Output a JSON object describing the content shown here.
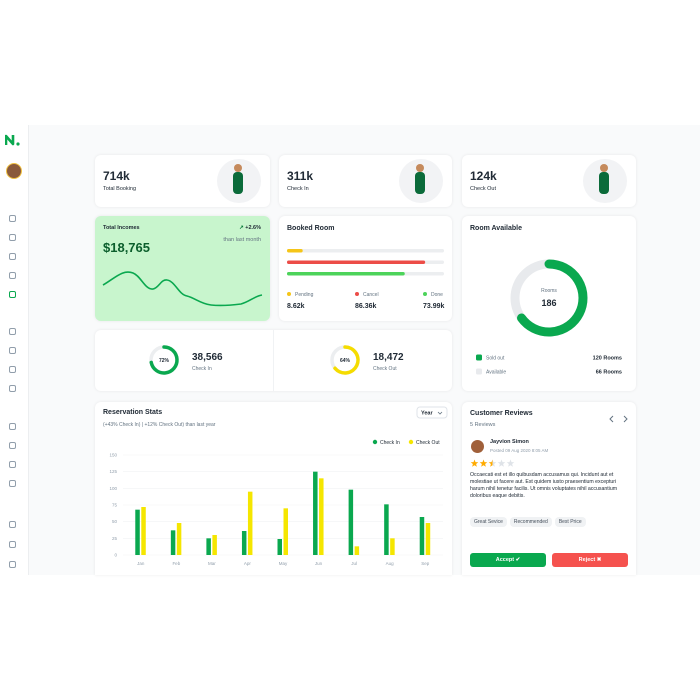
{
  "stats": [
    {
      "value": "714k",
      "label": "Total Booking"
    },
    {
      "value": "311k",
      "label": "Check In"
    },
    {
      "value": "124k",
      "label": "Check Out"
    }
  ],
  "income": {
    "title": "Total Incomes",
    "change": "+2.6%",
    "period": "than last month",
    "amount": "$18,765"
  },
  "booked_room": {
    "title": "Booked Room",
    "items": [
      {
        "label": "Pending",
        "value": "8.62k",
        "progress": 10,
        "color": "#f5c518"
      },
      {
        "label": "Cancel",
        "value": "86.36k",
        "progress": 88,
        "color": "#ec4c47"
      },
      {
        "label": "Done",
        "value": "73.99k",
        "progress": 75,
        "color": "#4cd35a"
      }
    ]
  },
  "room_available": {
    "title": "Room Available",
    "center_label": "Rooms",
    "center_value": "186",
    "sold_percent": 65,
    "legend": [
      {
        "label": "Sold out",
        "value": "120 Rooms",
        "color": "#0aa84f"
      },
      {
        "label": "Available",
        "value": "66 Rooms",
        "color": "#e8eaed"
      }
    ]
  },
  "checks": [
    {
      "percent": 72,
      "percent_label": "72%",
      "value": "38,566",
      "label": "Check In",
      "color": "#0aa84f"
    },
    {
      "percent": 64,
      "percent_label": "64%",
      "value": "18,472",
      "label": "Check Out",
      "color": "#f5dc00"
    }
  ],
  "chart_data": {
    "type": "bar",
    "title": "Reservation Stats",
    "subtitle": "(+43% Check In) | +12% Check Out) than last year",
    "period_select": "Year",
    "categories": [
      "Jan",
      "Feb",
      "Mar",
      "Apr",
      "May",
      "Jun",
      "Jul",
      "Aug",
      "Sep"
    ],
    "series": [
      {
        "name": "Check In",
        "color": "#0aa84f",
        "values": [
          68,
          37,
          25,
          36,
          24,
          125,
          98,
          76,
          57
        ]
      },
      {
        "name": "Check Out",
        "color": "#f5e600",
        "values": [
          72,
          48,
          30,
          95,
          70,
          115,
          13,
          25,
          48
        ]
      }
    ],
    "ylim": [
      0,
      150
    ],
    "yticks": [
      0,
      25,
      50,
      75,
      100,
      125,
      150
    ],
    "grid": true
  },
  "reviews": {
    "title": "Customer Reviews",
    "count": "5 Reviews",
    "name": "Jayvion Simon",
    "date": "Posted 09 Aug 2020 8:05 AM",
    "rating": 2.5,
    "text": "Occaecati est et illo quibusdam accusamus qui. Incidunt aut et molestiae ut facere aut. Est quidem iusto praesentium excepturi harum nihil tenetur facilis. Ut omnis voluptates nihil accusantium doloribus eaque debitis.",
    "tags": [
      "Great Sevice",
      "Recommended",
      "Best Price"
    ],
    "accept": "Accept",
    "reject": "Reject"
  }
}
